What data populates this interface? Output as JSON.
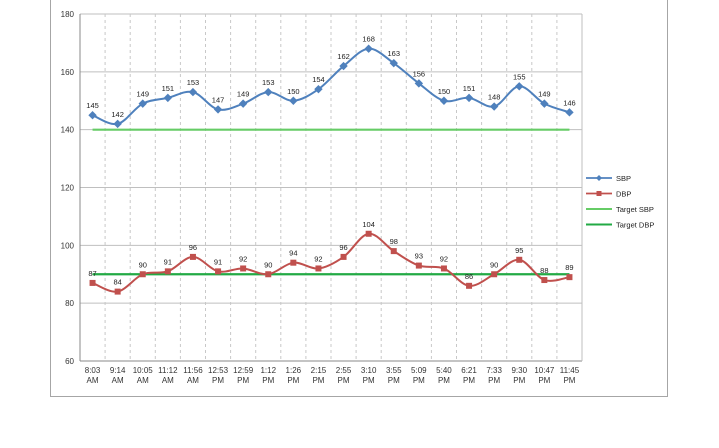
{
  "chart_data": {
    "type": "line",
    "title": "",
    "xlabel": "",
    "ylabel": "",
    "ylim": [
      60,
      180
    ],
    "yticks": [
      60,
      80,
      100,
      120,
      140,
      160,
      180
    ],
    "grid": true,
    "legend_position": "right",
    "categories": [
      "8:03 AM",
      "9:14 AM",
      "10:05 AM",
      "11:12 AM",
      "11:56 AM",
      "12:53 PM",
      "12:59 PM",
      "1:12 PM",
      "1:26 PM",
      "2:15 PM",
      "2:55 PM",
      "3:10 PM",
      "3:55 PM",
      "5:09 PM",
      "5:40 PM",
      "6:21 PM",
      "7:33 PM",
      "9:30 PM",
      "10:47 PM",
      "11:45 PM"
    ],
    "series": [
      {
        "name": "SBP",
        "color": "#4f81bd",
        "marker": "diamond",
        "values": [
          145,
          142,
          149,
          151,
          153,
          147,
          149,
          153,
          150,
          154,
          162,
          168,
          163,
          156,
          150,
          151,
          148,
          155,
          149,
          146
        ]
      },
      {
        "name": "DBP",
        "color": "#c0504d",
        "marker": "square",
        "values": [
          87,
          84,
          90,
          91,
          96,
          91,
          92,
          90,
          94,
          92,
          96,
          104,
          98,
          93,
          92,
          86,
          90,
          95,
          88,
          89
        ]
      },
      {
        "name": "Target SBP",
        "color": "#66cc66",
        "values": [
          140,
          140,
          140,
          140,
          140,
          140,
          140,
          140,
          140,
          140,
          140,
          140,
          140,
          140,
          140,
          140,
          140,
          140,
          140,
          140
        ]
      },
      {
        "name": "Target DBP",
        "color": "#22aa44",
        "values": [
          90,
          90,
          90,
          90,
          90,
          90,
          90,
          90,
          90,
          90,
          90,
          90,
          90,
          90,
          90,
          90,
          90,
          90,
          90,
          90
        ]
      }
    ]
  }
}
